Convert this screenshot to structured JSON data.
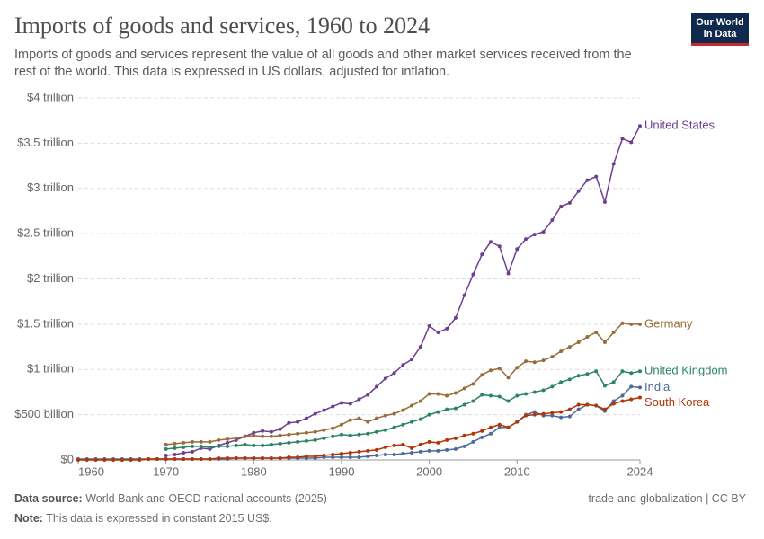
{
  "chart_data": {
    "type": "line",
    "title": "Imports of goods and services, 1960 to 2024",
    "subtitle": "Imports of goods and services represent the value of all goods and other market services received from the rest of the world. This data is expressed in US dollars, adjusted for inflation.",
    "logo": [
      "Our World",
      "in Data"
    ],
    "source_label": "Data source:",
    "source": "World Bank and OECD national accounts (2025)",
    "note_label": "Note:",
    "note": "This data is expressed in constant 2015 US$.",
    "license": "trade-and-globalization | CC BY",
    "grid": true,
    "xlim": [
      1960,
      2024
    ],
    "xticks": [
      1960,
      1970,
      1980,
      1990,
      2000,
      2010,
      2024
    ],
    "ylim": [
      0,
      4000000000000.0
    ],
    "yticks": [
      {
        "value": 0,
        "label": "$0"
      },
      {
        "value": 500000000000.0,
        "label": "$500 billion"
      },
      {
        "value": 1000000000000.0,
        "label": "$1 trillion"
      },
      {
        "value": 1500000000000.0,
        "label": "$1.5 trillion"
      },
      {
        "value": 2000000000000.0,
        "label": "$2 trillion"
      },
      {
        "value": 2500000000000.0,
        "label": "$2.5 trillion"
      },
      {
        "value": 3000000000000.0,
        "label": "$3 trillion"
      },
      {
        "value": 3500000000000.0,
        "label": "$3.5 trillion"
      },
      {
        "value": 4000000000000.0,
        "label": "$4 trillion"
      }
    ],
    "x": [
      1960,
      1961,
      1962,
      1963,
      1964,
      1965,
      1966,
      1967,
      1968,
      1969,
      1970,
      1971,
      1972,
      1973,
      1974,
      1975,
      1976,
      1977,
      1978,
      1979,
      1980,
      1981,
      1982,
      1983,
      1984,
      1985,
      1986,
      1987,
      1988,
      1989,
      1990,
      1991,
      1992,
      1993,
      1994,
      1995,
      1996,
      1997,
      1998,
      1999,
      2000,
      2001,
      2002,
      2003,
      2004,
      2005,
      2006,
      2007,
      2008,
      2009,
      2010,
      2011,
      2012,
      2013,
      2014,
      2015,
      2016,
      2017,
      2018,
      2019,
      2020,
      2021,
      2022,
      2023,
      2024
    ],
    "series": [
      {
        "name": "United States",
        "color": "#6d3e91",
        "values": [
          null,
          null,
          null,
          null,
          null,
          null,
          null,
          null,
          null,
          null,
          50000000000.0,
          60000000000.0,
          80000000000.0,
          90000000000.0,
          130000000000.0,
          120000000000.0,
          160000000000.0,
          190000000000.0,
          220000000000.0,
          260000000000.0,
          300000000000.0,
          320000000000.0,
          310000000000.0,
          340000000000.0,
          410000000000.0,
          420000000000.0,
          460000000000.0,
          510000000000.0,
          550000000000.0,
          590000000000.0,
          630000000000.0,
          620000000000.0,
          670000000000.0,
          720000000000.0,
          810000000000.0,
          900000000000.0,
          960000000000.0,
          1050000000000.0,
          1110000000000.0,
          1250000000000.0,
          1480000000000.0,
          1410000000000.0,
          1450000000000.0,
          1570000000000.0,
          1820000000000.0,
          2050000000000.0,
          2270000000000.0,
          2410000000000.0,
          2360000000000.0,
          2060000000000.0,
          2330000000000.0,
          2440000000000.0,
          2490000000000.0,
          2520000000000.0,
          2650000000000.0,
          2800000000000.0,
          2840000000000.0,
          2970000000000.0,
          3090000000000.0,
          3130000000000.0,
          2850000000000.0,
          3270000000000.0,
          3550000000000.0,
          3510000000000.0,
          3690000000000.0
        ]
      },
      {
        "name": "Germany",
        "color": "#996d39",
        "values": [
          null,
          null,
          null,
          null,
          null,
          null,
          null,
          null,
          null,
          null,
          170000000000.0,
          180000000000.0,
          190000000000.0,
          200000000000.0,
          200000000000.0,
          200000000000.0,
          220000000000.0,
          230000000000.0,
          240000000000.0,
          260000000000.0,
          270000000000.0,
          260000000000.0,
          260000000000.0,
          270000000000.0,
          280000000000.0,
          290000000000.0,
          300000000000.0,
          310000000000.0,
          330000000000.0,
          350000000000.0,
          390000000000.0,
          440000000000.0,
          460000000000.0,
          420000000000.0,
          460000000000.0,
          490000000000.0,
          510000000000.0,
          550000000000.0,
          600000000000.0,
          650000000000.0,
          730000000000.0,
          730000000000.0,
          710000000000.0,
          740000000000.0,
          790000000000.0,
          840000000000.0,
          940000000000.0,
          990000000000.0,
          1010000000000.0,
          910000000000.0,
          1020000000000.0,
          1090000000000.0,
          1080000000000.0,
          1100000000000.0,
          1140000000000.0,
          1200000000000.0,
          1250000000000.0,
          1300000000000.0,
          1360000000000.0,
          1410000000000.0,
          1300000000000.0,
          1410000000000.0,
          1510000000000.0,
          1500000000000.0,
          1500000000000.0
        ]
      },
      {
        "name": "United Kingdom",
        "color": "#2c8465",
        "values": [
          null,
          null,
          null,
          null,
          null,
          null,
          null,
          null,
          null,
          null,
          120000000000.0,
          130000000000.0,
          140000000000.0,
          150000000000.0,
          150000000000.0,
          140000000000.0,
          150000000000.0,
          150000000000.0,
          160000000000.0,
          170000000000.0,
          160000000000.0,
          160000000000.0,
          170000000000.0,
          180000000000.0,
          190000000000.0,
          200000000000.0,
          210000000000.0,
          220000000000.0,
          240000000000.0,
          260000000000.0,
          280000000000.0,
          270000000000.0,
          280000000000.0,
          290000000000.0,
          310000000000.0,
          330000000000.0,
          360000000000.0,
          390000000000.0,
          420000000000.0,
          450000000000.0,
          500000000000.0,
          530000000000.0,
          560000000000.0,
          570000000000.0,
          610000000000.0,
          650000000000.0,
          720000000000.0,
          710000000000.0,
          700000000000.0,
          650000000000.0,
          710000000000.0,
          730000000000.0,
          750000000000.0,
          770000000000.0,
          810000000000.0,
          860000000000.0,
          890000000000.0,
          930000000000.0,
          950000000000.0,
          980000000000.0,
          820000000000.0,
          860000000000.0,
          980000000000.0,
          960000000000.0,
          980000000000.0
        ]
      },
      {
        "name": "India",
        "color": "#4c6a9c",
        "values": [
          10000000000.0,
          10000000000.0,
          10000000000.0,
          10000000000.0,
          10000000000.0,
          10000000000.0,
          10000000000.0,
          10000000000.0,
          10000000000.0,
          10000000000.0,
          10000000000.0,
          10000000000.0,
          10000000000.0,
          10000000000.0,
          10000000000.0,
          10000000000.0,
          10000000000.0,
          10000000000.0,
          20000000000.0,
          20000000000.0,
          20000000000.0,
          20000000000.0,
          20000000000.0,
          20000000000.0,
          20000000000.0,
          20000000000.0,
          20000000000.0,
          20000000000.0,
          30000000000.0,
          30000000000.0,
          30000000000.0,
          30000000000.0,
          30000000000.0,
          40000000000.0,
          50000000000.0,
          60000000000.0,
          60000000000.0,
          70000000000.0,
          80000000000.0,
          90000000000.0,
          100000000000.0,
          100000000000.0,
          110000000000.0,
          120000000000.0,
          150000000000.0,
          200000000000.0,
          250000000000.0,
          290000000000.0,
          360000000000.0,
          360000000000.0,
          420000000000.0,
          500000000000.0,
          530000000000.0,
          490000000000.0,
          490000000000.0,
          470000000000.0,
          480000000000.0,
          560000000000.0,
          610000000000.0,
          600000000000.0,
          540000000000.0,
          650000000000.0,
          710000000000.0,
          810000000000.0,
          800000000000.0
        ]
      },
      {
        "name": "South Korea",
        "color": "#b13507",
        "values": [
          0,
          0,
          0,
          0,
          0,
          0,
          0,
          0,
          10000000000.0,
          10000000000.0,
          10000000000.0,
          10000000000.0,
          10000000000.0,
          10000000000.0,
          10000000000.0,
          10000000000.0,
          20000000000.0,
          20000000000.0,
          20000000000.0,
          20000000000.0,
          20000000000.0,
          20000000000.0,
          20000000000.0,
          20000000000.0,
          30000000000.0,
          30000000000.0,
          40000000000.0,
          40000000000.0,
          50000000000.0,
          60000000000.0,
          70000000000.0,
          80000000000.0,
          90000000000.0,
          100000000000.0,
          110000000000.0,
          140000000000.0,
          160000000000.0,
          170000000000.0,
          130000000000.0,
          170000000000.0,
          200000000000.0,
          190000000000.0,
          220000000000.0,
          240000000000.0,
          270000000000.0,
          290000000000.0,
          320000000000.0,
          360000000000.0,
          390000000000.0,
          360000000000.0,
          420000000000.0,
          490000000000.0,
          500000000000.0,
          510000000000.0,
          520000000000.0,
          530000000000.0,
          560000000000.0,
          610000000000.0,
          610000000000.0,
          600000000000.0,
          560000000000.0,
          620000000000.0,
          650000000000.0,
          670000000000.0,
          690000000000.0
        ]
      }
    ]
  }
}
